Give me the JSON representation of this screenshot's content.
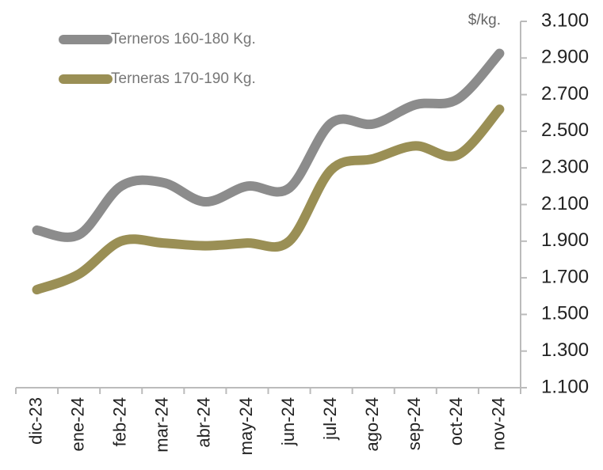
{
  "chart_data": {
    "type": "line",
    "y_unit": "$/kg.",
    "categories": [
      "dic-23",
      "ene-24",
      "feb-24",
      "mar-24",
      "abr-24",
      "may-24",
      "jun-24",
      "jul-24",
      "ago-24",
      "sep-24",
      "oct-24",
      "nov-24"
    ],
    "series": [
      {
        "name": "Terneros 160-180 Kg.",
        "color": "#8c8c8c",
        "values": [
          1960,
          1935,
          2200,
          2220,
          2115,
          2200,
          2190,
          2545,
          2540,
          2645,
          2675,
          2925
        ]
      },
      {
        "name": "Terneras 170-190 Kg.",
        "color": "#9a8f55",
        "values": [
          1635,
          1720,
          1900,
          1890,
          1875,
          1890,
          1900,
          2290,
          2350,
          2420,
          2370,
          2620
        ]
      }
    ],
    "ylim": [
      1100,
      3100
    ],
    "yticks": [
      {
        "value": 1100,
        "label": "1.100"
      },
      {
        "value": 1300,
        "label": "1.300"
      },
      {
        "value": 1500,
        "label": "1.500"
      },
      {
        "value": 1700,
        "label": "1.700"
      },
      {
        "value": 1900,
        "label": "1.900"
      },
      {
        "value": 2100,
        "label": "2.100"
      },
      {
        "value": 2300,
        "label": "2.300"
      },
      {
        "value": 2500,
        "label": "2.500"
      },
      {
        "value": 2700,
        "label": "2.700"
      },
      {
        "value": 2900,
        "label": "2.900"
      },
      {
        "value": 3100,
        "label": "3.100"
      }
    ],
    "grid": false,
    "legend": "upper left"
  }
}
